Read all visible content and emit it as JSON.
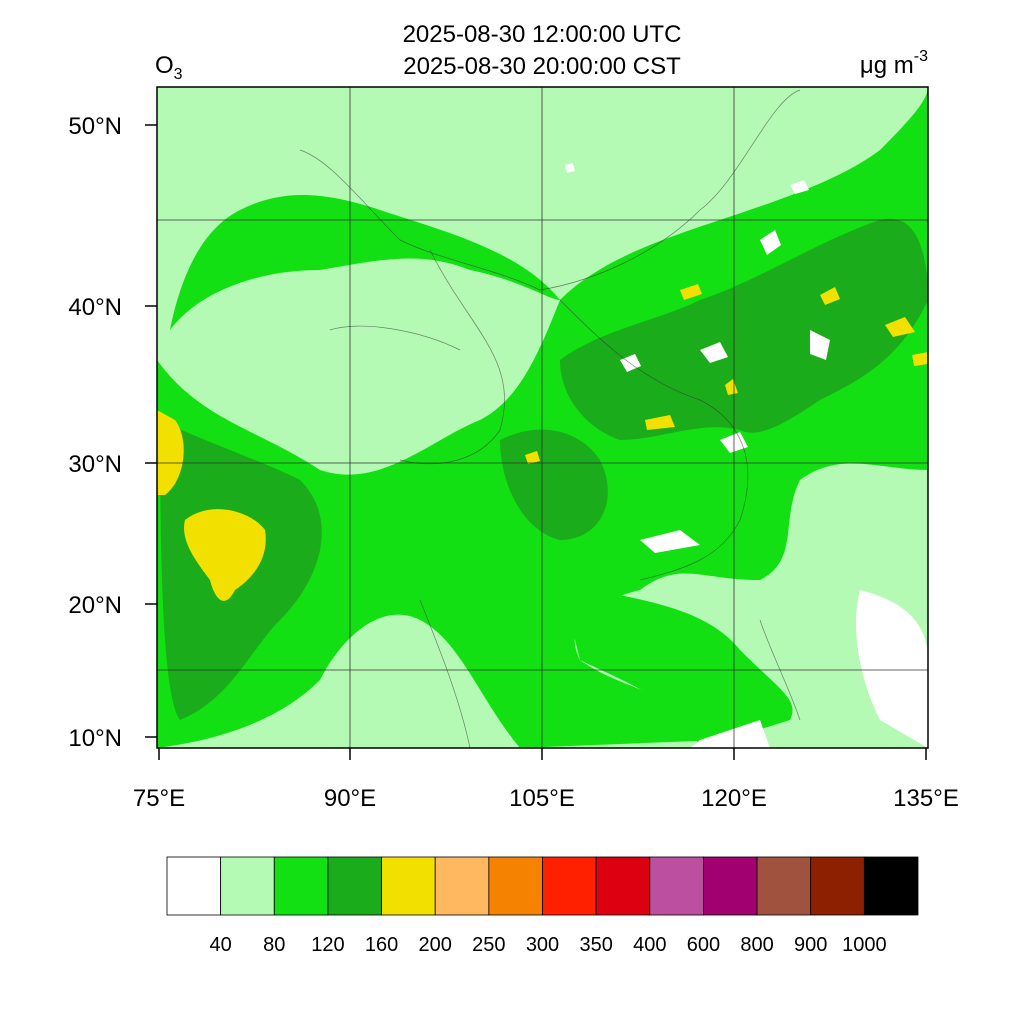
{
  "header": {
    "title_lines": [
      "2025-08-30 12:00:00 UTC",
      "2025-08-30 20:00:00 CST"
    ],
    "variable": {
      "base": "O",
      "subscript": "3"
    },
    "units": {
      "base": "μg m",
      "superscript": "-3"
    }
  },
  "map": {
    "lat_ticks": [
      "50°N",
      "40°N",
      "30°N",
      "20°N",
      "10°N"
    ],
    "lon_ticks": [
      "75°E",
      "90°E",
      "105°E",
      "120°E",
      "135°E"
    ]
  },
  "colorbar": {
    "colors": [
      "#ffffff",
      "#b4f9b4",
      "#12e012",
      "#1aac1a",
      "#f2e000",
      "#ffb860",
      "#f58200",
      "#ff2000",
      "#dc0010",
      "#bc4fa0",
      "#a00070",
      "#a0523f",
      "#8c2000",
      "#000000"
    ],
    "labels": [
      "40",
      "80",
      "120",
      "160",
      "200",
      "250",
      "300",
      "350",
      "400",
      "600",
      "800",
      "900",
      "1000"
    ]
  }
}
